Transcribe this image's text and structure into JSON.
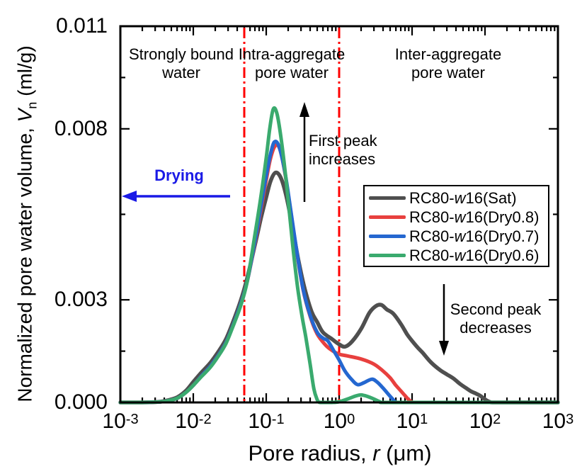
{
  "figure": {
    "background": "#ffffff"
  },
  "y_axis": {
    "label_prefix": "Normalized pore water volume, ",
    "label_symbol": "V",
    "label_subscript": "n",
    "label_suffix": " (ml/g)",
    "tick_labels": [
      "0.000",
      "0.003",
      "0.008",
      "0.011"
    ]
  },
  "x_axis": {
    "label_prefix": "Pore radius, ",
    "label_symbol": "r",
    "label_suffix": " (μm)",
    "tick_labels": [
      {
        "base": "10",
        "exp": "-3"
      },
      {
        "base": "10",
        "exp": "-2"
      },
      {
        "base": "10",
        "exp": "-1"
      },
      {
        "base": "10",
        "exp": "0"
      },
      {
        "base": "10",
        "exp": "1"
      },
      {
        "base": "10",
        "exp": "2"
      },
      {
        "base": "10",
        "exp": "3"
      }
    ]
  },
  "regions": [
    {
      "line1": "Strongly bound",
      "line2": "water"
    },
    {
      "line1": "Intra-aggregate",
      "line2": "pore water"
    },
    {
      "line1": "Inter-aggregate",
      "line2": "pore water"
    }
  ],
  "annotations": {
    "drying": {
      "text": "Drying",
      "color": "#1a1ae6"
    },
    "first_peak": {
      "line1": "First peak",
      "line2": "increases"
    },
    "second_peak": {
      "line1": "Second peak",
      "line2": "decreases"
    }
  },
  "legend": {
    "entries": [
      {
        "prefix": "RC80-",
        "italic": "w",
        "suffix": "16(Sat)"
      },
      {
        "prefix": "RC80-",
        "italic": "w",
        "suffix": "16(Dry0.8)"
      },
      {
        "prefix": "RC80-",
        "italic": "w",
        "suffix": "16(Dry0.7)"
      },
      {
        "prefix": "RC80-",
        "italic": "w",
        "suffix": "16(Dry0.6)"
      }
    ]
  },
  "chart_data": {
    "type": "line",
    "x_scale": "log",
    "xlabel": "Pore radius, r (μm)",
    "ylabel": "Normalized pore water volume, Vn (ml/g)",
    "xlim": [
      0.001,
      1000
    ],
    "ylim": [
      0,
      0.011
    ],
    "y_major_ticks": [
      0,
      0.003,
      0.008,
      0.011
    ],
    "y_minor_ticks": [
      0.0015,
      0.0055,
      0.0095
    ],
    "x_major_ticks": [
      0.001,
      0.01,
      0.1,
      1,
      10,
      100,
      1000
    ],
    "grid": false,
    "legend_position": "center-right",
    "reference_lines": {
      "x_values": [
        0.05,
        1.0
      ],
      "color": "#ff0000",
      "style": "dash-dot"
    },
    "series": [
      {
        "name": "RC80-w16(Sat)",
        "color": "#4f4f4f",
        "points": [
          [
            0.001,
            0
          ],
          [
            0.002,
            0
          ],
          [
            0.003,
            1e-05
          ],
          [
            0.004,
            4e-05
          ],
          [
            0.006,
            0.00015
          ],
          [
            0.008,
            0.00035
          ],
          [
            0.01,
            0.0006
          ],
          [
            0.013,
            0.00088
          ],
          [
            0.017,
            0.00115
          ],
          [
            0.022,
            0.00148
          ],
          [
            0.028,
            0.00185
          ],
          [
            0.035,
            0.00235
          ],
          [
            0.045,
            0.003
          ],
          [
            0.055,
            0.00365
          ],
          [
            0.07,
            0.0046
          ],
          [
            0.085,
            0.0054
          ],
          [
            0.1,
            0.006
          ],
          [
            0.115,
            0.00648
          ],
          [
            0.135,
            0.00672
          ],
          [
            0.16,
            0.00655
          ],
          [
            0.19,
            0.006
          ],
          [
            0.23,
            0.0051
          ],
          [
            0.28,
            0.0041
          ],
          [
            0.34,
            0.0033
          ],
          [
            0.42,
            0.00265
          ],
          [
            0.5,
            0.00235
          ],
          [
            0.6,
            0.00205
          ],
          [
            0.8,
            0.00185
          ],
          [
            1,
            0.0017
          ],
          [
            1.2,
            0.00163
          ],
          [
            1.5,
            0.00178
          ],
          [
            2,
            0.00215
          ],
          [
            2.6,
            0.00262
          ],
          [
            3.2,
            0.00282
          ],
          [
            3.8,
            0.00285
          ],
          [
            4.5,
            0.00272
          ],
          [
            5.5,
            0.0026
          ],
          [
            7,
            0.0023
          ],
          [
            8.5,
            0.002
          ],
          [
            10,
            0.0018
          ],
          [
            12,
            0.0016
          ],
          [
            14,
            0.00145
          ],
          [
            18,
            0.00118
          ],
          [
            24,
            0.00095
          ],
          [
            30,
            0.00082
          ],
          [
            37,
            0.0007
          ],
          [
            45,
            0.00055
          ],
          [
            55,
            0.00042
          ],
          [
            65,
            0.00032
          ],
          [
            75,
            0.00026
          ],
          [
            85,
            0.0002
          ],
          [
            95,
            0.00013
          ],
          [
            105,
            6e-05
          ],
          [
            118,
            1e-05
          ],
          [
            130,
            0
          ],
          [
            300,
            0
          ],
          [
            1000,
            0
          ]
        ]
      },
      {
        "name": "RC80-w16(Dry0.8)",
        "color": "#e8403e",
        "points": [
          [
            0.001,
            0
          ],
          [
            0.002,
            0
          ],
          [
            0.003,
            1e-05
          ],
          [
            0.004,
            3e-05
          ],
          [
            0.006,
            0.00012
          ],
          [
            0.008,
            0.0003
          ],
          [
            0.01,
            0.0005
          ],
          [
            0.013,
            0.00078
          ],
          [
            0.017,
            0.00105
          ],
          [
            0.022,
            0.00138
          ],
          [
            0.028,
            0.00175
          ],
          [
            0.035,
            0.00225
          ],
          [
            0.045,
            0.0029
          ],
          [
            0.055,
            0.00355
          ],
          [
            0.07,
            0.00465
          ],
          [
            0.085,
            0.00565
          ],
          [
            0.1,
            0.0065
          ],
          [
            0.115,
            0.00715
          ],
          [
            0.135,
            0.00752
          ],
          [
            0.155,
            0.00738
          ],
          [
            0.18,
            0.00672
          ],
          [
            0.215,
            0.00565
          ],
          [
            0.26,
            0.00445
          ],
          [
            0.32,
            0.0033
          ],
          [
            0.4,
            0.00252
          ],
          [
            0.5,
            0.002
          ],
          [
            0.65,
            0.00168
          ],
          [
            0.8,
            0.00152
          ],
          [
            1,
            0.00141
          ],
          [
            1.3,
            0.00136
          ],
          [
            2,
            0.00127
          ],
          [
            3,
            0.00112
          ],
          [
            4,
            0.00092
          ],
          [
            5,
            0.00072
          ],
          [
            6,
            0.0005
          ],
          [
            7,
            0.00034
          ],
          [
            8,
            0.0002
          ],
          [
            9,
            8e-05
          ],
          [
            10,
            1e-05
          ],
          [
            11,
            0
          ],
          [
            100,
            0
          ],
          [
            1000,
            0
          ]
        ]
      },
      {
        "name": "RC80-w16(Dry0.7)",
        "color": "#2467d0",
        "points": [
          [
            0.001,
            0
          ],
          [
            0.002,
            0
          ],
          [
            0.003,
            1e-05
          ],
          [
            0.004,
            3e-05
          ],
          [
            0.006,
            0.00012
          ],
          [
            0.008,
            0.0003
          ],
          [
            0.01,
            0.0005
          ],
          [
            0.013,
            0.00078
          ],
          [
            0.017,
            0.00105
          ],
          [
            0.022,
            0.00138
          ],
          [
            0.028,
            0.00175
          ],
          [
            0.035,
            0.00225
          ],
          [
            0.045,
            0.0029
          ],
          [
            0.055,
            0.00355
          ],
          [
            0.07,
            0.0047
          ],
          [
            0.085,
            0.00575
          ],
          [
            0.1,
            0.00662
          ],
          [
            0.115,
            0.00728
          ],
          [
            0.13,
            0.00762
          ],
          [
            0.15,
            0.00748
          ],
          [
            0.18,
            0.00675
          ],
          [
            0.215,
            0.00568
          ],
          [
            0.26,
            0.00448
          ],
          [
            0.32,
            0.00332
          ],
          [
            0.4,
            0.00255
          ],
          [
            0.5,
            0.00205
          ],
          [
            0.6,
            0.00188
          ],
          [
            0.7,
            0.0018
          ],
          [
            0.85,
            0.0015
          ],
          [
            1,
            0.00124
          ],
          [
            1.2,
            0.00092
          ],
          [
            1.5,
            0.00066
          ],
          [
            1.8,
            0.00052
          ],
          [
            2.2,
            0.00058
          ],
          [
            2.8,
            0.00068
          ],
          [
            3.3,
            0.0006
          ],
          [
            4,
            0.00042
          ],
          [
            5,
            0.00018
          ],
          [
            5.8,
            3e-05
          ],
          [
            6.2,
            0
          ],
          [
            100,
            0
          ],
          [
            1000,
            0
          ]
        ]
      },
      {
        "name": "RC80-w16(Dry0.6)",
        "color": "#3aaa6e",
        "points": [
          [
            0.001,
            0
          ],
          [
            0.002,
            0
          ],
          [
            0.003,
            1e-05
          ],
          [
            0.004,
            3e-05
          ],
          [
            0.006,
            0.00012
          ],
          [
            0.008,
            0.0003
          ],
          [
            0.01,
            0.0005
          ],
          [
            0.013,
            0.00076
          ],
          [
            0.017,
            0.00102
          ],
          [
            0.022,
            0.00135
          ],
          [
            0.028,
            0.00172
          ],
          [
            0.035,
            0.00222
          ],
          [
            0.045,
            0.00285
          ],
          [
            0.055,
            0.00355
          ],
          [
            0.07,
            0.0049
          ],
          [
            0.085,
            0.00605
          ],
          [
            0.1,
            0.00715
          ],
          [
            0.112,
            0.00802
          ],
          [
            0.125,
            0.00858
          ],
          [
            0.14,
            0.00845
          ],
          [
            0.16,
            0.00772
          ],
          [
            0.19,
            0.00638
          ],
          [
            0.23,
            0.00462
          ],
          [
            0.27,
            0.00335
          ],
          [
            0.31,
            0.00252
          ],
          [
            0.35,
            0.0019
          ],
          [
            0.4,
            0.00112
          ],
          [
            0.45,
            0.0004
          ],
          [
            0.5,
            8e-05
          ],
          [
            0.53,
            1e-05
          ],
          [
            0.56,
            0
          ],
          [
            0.8,
            0
          ],
          [
            1,
            2e-05
          ],
          [
            1.3,
            0.0001
          ],
          [
            1.7,
            0.00019
          ],
          [
            2,
            0.00022
          ],
          [
            2.4,
            0.00018
          ],
          [
            3,
            0.0001
          ],
          [
            3.6,
            2e-05
          ],
          [
            4,
            0
          ],
          [
            10,
            0
          ],
          [
            100,
            0
          ],
          [
            1000,
            0
          ]
        ]
      }
    ]
  }
}
